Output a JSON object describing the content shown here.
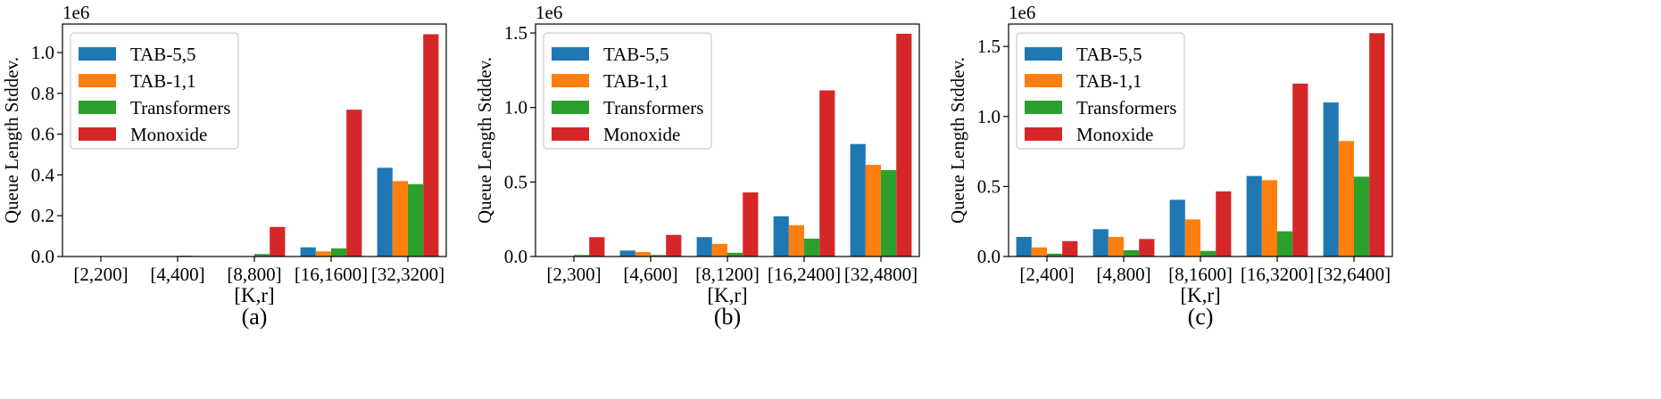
{
  "chart_data": [
    {
      "type": "bar",
      "panel_label": "(a)",
      "xlabel": "[K,r]",
      "ylabel": "Queue Length Stddev.",
      "scale_label": "1e6",
      "ylim": [
        0,
        1.14
      ],
      "yticks": [
        "0.0",
        "0.2",
        "0.4",
        "0.6",
        "0.8",
        "1.0"
      ],
      "ytick_values": [
        0,
        0.2,
        0.4,
        0.6,
        0.8,
        1.0
      ],
      "categories": [
        "[2,200]",
        "[4,400]",
        "[8,800]",
        "[16,1600]",
        "[32,3200]"
      ],
      "legend_position": "top-left",
      "series": [
        {
          "name": "TAB-5,5",
          "color": "#1f77b4",
          "values": [
            0.0005,
            0.001,
            0.002,
            0.045,
            0.435
          ]
        },
        {
          "name": "TAB-1,1",
          "color": "#ff7f0e",
          "values": [
            0.0005,
            0.001,
            0.002,
            0.025,
            0.37
          ]
        },
        {
          "name": "Transformers",
          "color": "#2ca02c",
          "values": [
            0.002,
            0.004,
            0.012,
            0.04,
            0.355
          ]
        },
        {
          "name": "Monoxide",
          "color": "#d62728",
          "values": [
            0.001,
            0.002,
            0.145,
            0.72,
            1.09
          ]
        }
      ]
    },
    {
      "type": "bar",
      "panel_label": "(b)",
      "xlabel": "[K,r]",
      "ylabel": "Queue Length Stddev.",
      "scale_label": "1e6",
      "ylim": [
        0,
        1.56
      ],
      "yticks": [
        "0.0",
        "0.5",
        "1.0",
        "1.5"
      ],
      "ytick_values": [
        0,
        0.5,
        1.0,
        1.5
      ],
      "categories": [
        "[2,300]",
        "[4,600]",
        "[8,1200]",
        "[16,2400]",
        "[32,4800]"
      ],
      "legend_position": "top-left",
      "series": [
        {
          "name": "TAB-5,5",
          "color": "#1f77b4",
          "values": [
            0.002,
            0.04,
            0.13,
            0.27,
            0.755
          ]
        },
        {
          "name": "TAB-1,1",
          "color": "#ff7f0e",
          "values": [
            0.002,
            0.03,
            0.085,
            0.21,
            0.615
          ]
        },
        {
          "name": "Transformers",
          "color": "#2ca02c",
          "values": [
            0.01,
            0.01,
            0.025,
            0.12,
            0.58
          ]
        },
        {
          "name": "Monoxide",
          "color": "#d62728",
          "values": [
            0.13,
            0.145,
            0.43,
            1.115,
            1.495
          ]
        }
      ]
    },
    {
      "type": "bar",
      "panel_label": "(c)",
      "xlabel": "[K,r]",
      "ylabel": "Queue Length Stddev.",
      "scale_label": "1e6",
      "ylim": [
        0,
        1.66
      ],
      "yticks": [
        "0.0",
        "0.5",
        "1.0",
        "1.5"
      ],
      "ytick_values": [
        0,
        0.5,
        1.0,
        1.5
      ],
      "categories": [
        "[2,400]",
        "[4,800]",
        "[8,1600]",
        "[16,3200]",
        "[32,6400]"
      ],
      "legend_position": "top-left",
      "series": [
        {
          "name": "TAB-5,5",
          "color": "#1f77b4",
          "values": [
            0.14,
            0.195,
            0.405,
            0.575,
            1.1
          ]
        },
        {
          "name": "TAB-1,1",
          "color": "#ff7f0e",
          "values": [
            0.065,
            0.14,
            0.265,
            0.545,
            0.825
          ]
        },
        {
          "name": "Transformers",
          "color": "#2ca02c",
          "values": [
            0.02,
            0.045,
            0.04,
            0.18,
            0.57
          ]
        },
        {
          "name": "Monoxide",
          "color": "#d62728",
          "values": [
            0.11,
            0.125,
            0.465,
            1.235,
            1.595
          ]
        }
      ]
    }
  ]
}
